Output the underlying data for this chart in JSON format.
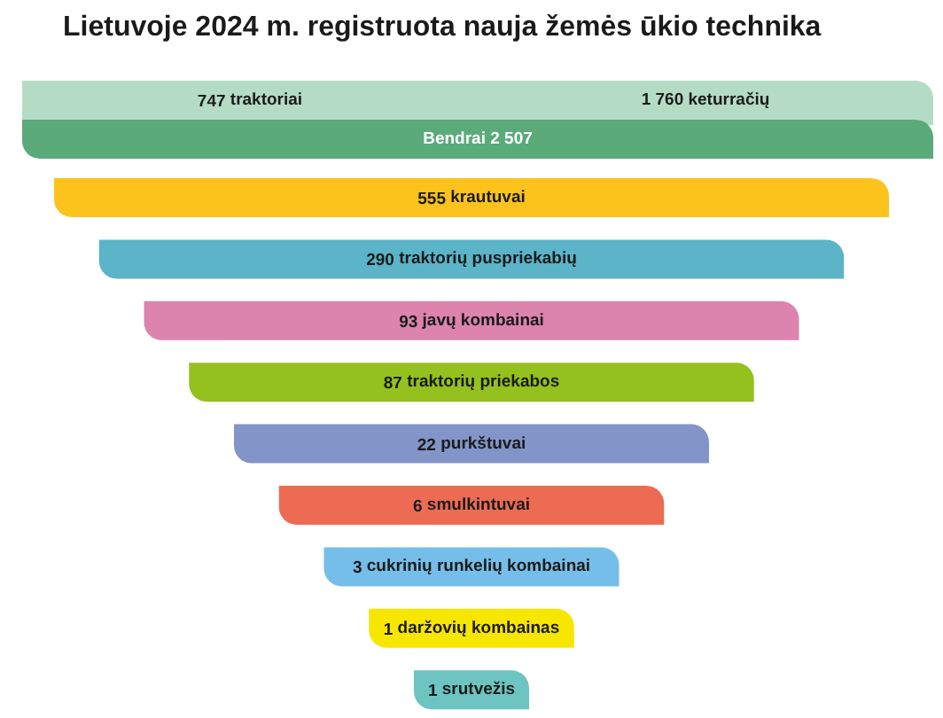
{
  "chart_data": {
    "type": "other",
    "title": "Lietuvoje 2024 m. registruota nauja žemės ūkio technika",
    "categories": [
      "traktoriai",
      "keturračių",
      "Bendrai",
      "krautuvai",
      "traktorių puspriekabių",
      "javų kombainai",
      "traktorių priekabos",
      "purkštuvai",
      "smulkintuvai",
      "cukrinių runkelių kombainai",
      "daržovių kombainas",
      "srutvežis"
    ],
    "values": [
      747,
      1760,
      2507,
      555,
      290,
      93,
      87,
      22,
      6,
      3,
      1,
      1
    ],
    "data_labels": true,
    "colors": [
      "#b4dcc4",
      "#b4dcc4",
      "#5aaa7a",
      "#fcc31c",
      "#5bb4c8",
      "#dc83ae",
      "#95c11f",
      "#8394c9",
      "#ee6b53",
      "#75bee9",
      "#f7e600",
      "#6dc4c1"
    ]
  }
}
